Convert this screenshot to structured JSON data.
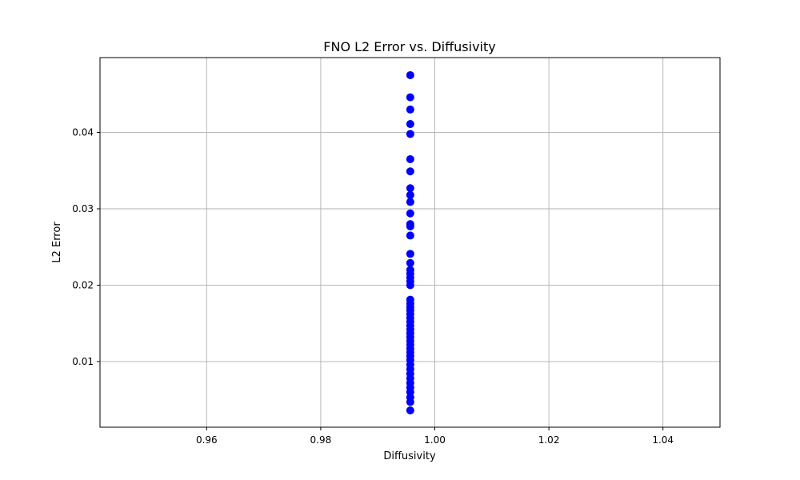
{
  "chart_data": {
    "type": "scatter",
    "title": "FNO L2 Error vs. Diffusivity",
    "xlabel": "Diffusivity",
    "ylabel": "L2 Error",
    "xlim": [
      0.9413,
      1.05
    ],
    "ylim": [
      0.0014,
      0.0498
    ],
    "xticks": [
      0.96,
      0.98,
      1.0,
      1.02,
      1.04
    ],
    "xtick_labels": [
      "0.96",
      "0.98",
      "1.00",
      "1.02",
      "1.04"
    ],
    "yticks": [
      0.01,
      0.02,
      0.03,
      0.04
    ],
    "ytick_labels": [
      "0.01",
      "0.02",
      "0.03",
      "0.04"
    ],
    "grid": true,
    "marker_color": "#0000ff",
    "series": [
      {
        "x": [
          0.9957,
          0.9957,
          0.9957,
          0.9957,
          0.9957,
          0.9957,
          0.9957,
          0.9957,
          0.9957,
          0.9957,
          0.9957,
          0.9957,
          0.9957,
          0.9957,
          0.9957,
          0.9957,
          0.9957,
          0.9957,
          0.9957,
          0.9957,
          0.9957,
          0.9957,
          0.9957,
          0.9957,
          0.9957,
          0.9957,
          0.9957,
          0.9957,
          0.9957,
          0.9957,
          0.9957,
          0.9957,
          0.9957,
          0.9957,
          0.9957,
          0.9957,
          0.9957,
          0.9957,
          0.9957,
          0.9957,
          0.9957,
          0.9957,
          0.9957,
          0.9957,
          0.9957,
          0.9957,
          0.9957,
          0.9957
        ],
        "y": [
          0.0475,
          0.0446,
          0.043,
          0.0411,
          0.0398,
          0.0365,
          0.0349,
          0.0327,
          0.0318,
          0.0309,
          0.0294,
          0.028,
          0.0277,
          0.0265,
          0.0241,
          0.0229,
          0.022,
          0.0215,
          0.021,
          0.0205,
          0.02,
          0.0181,
          0.0176,
          0.0171,
          0.0167,
          0.0162,
          0.0157,
          0.0152,
          0.0147,
          0.0142,
          0.0137,
          0.0132,
          0.0127,
          0.0122,
          0.0117,
          0.0112,
          0.0107,
          0.0102,
          0.0096,
          0.009,
          0.0084,
          0.0078,
          0.0072,
          0.0066,
          0.006,
          0.0053,
          0.0047,
          0.0036
        ]
      }
    ]
  }
}
